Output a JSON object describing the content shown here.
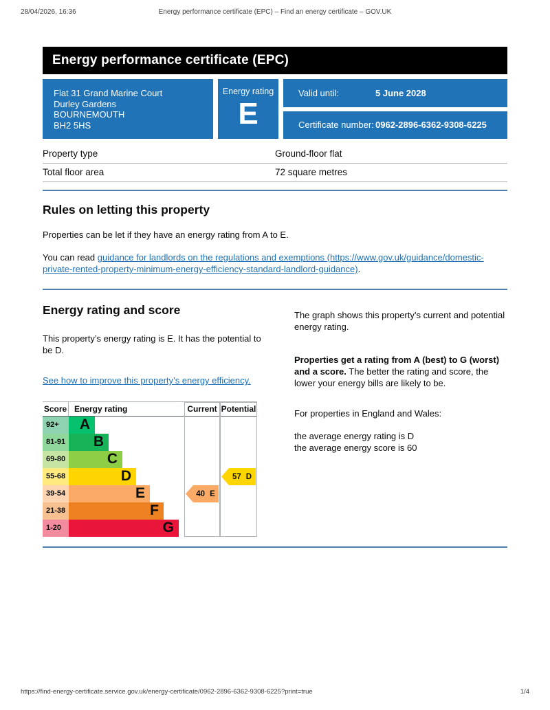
{
  "print_header": {
    "datetime": "28/04/2026, 16:36",
    "title": "Energy performance certificate (EPC) – Find an energy certificate – GOV.UK"
  },
  "banner": {
    "title": "Energy performance certificate (EPC)"
  },
  "summary": {
    "address_lines": [
      "Flat 31 Grand Marine Court",
      "Durley Gardens",
      "BOURNEMOUTH",
      "BH2 5HS"
    ],
    "energy_rating_label": "Energy rating",
    "energy_rating": "E",
    "valid_until_label": "Valid until:",
    "valid_until_value": "5 June 2028",
    "certificate_number_label": "Certificate number:",
    "certificate_number_value": "0962-2896-6362-9308-6225"
  },
  "property_table": {
    "rows": [
      {
        "label": "Property type",
        "value": "Ground-floor flat"
      },
      {
        "label": "Total floor area",
        "value": "72 square metres"
      }
    ]
  },
  "rules_section": {
    "heading": "Rules on letting this property",
    "paragraph1": "Properties can be let if they have an energy rating from A to E.",
    "paragraph2_prefix": "You can read ",
    "link_text": "guidance for landlords on the regulations and exemptions (https://www.gov.uk/guidance/domestic-private-rented-property-minimum-energy-efficiency-standard-landlord-guidance)",
    "paragraph2_suffix": "."
  },
  "rating_section": {
    "heading": "Energy rating and score",
    "paragraph1": "This property’s energy rating is E. It has the potential to be D.",
    "improve_link": "See how to improve this property’s energy efficiency.",
    "right_paragraph1": "The graph shows this property’s current and potential energy rating.",
    "right_paragraph2_bold": "Properties get a rating from A (best) to G (worst) and a score.",
    "right_paragraph2_rest": " The better the rating and score, the lower your energy bills are likely to be.",
    "right_paragraph3": "For properties in England and Wales:",
    "average_rating_line": "the average energy rating is D",
    "average_score_line": "the average energy score is 60"
  },
  "chart_data": {
    "type": "bar",
    "title": "EPC energy rating and score graph",
    "columns": {
      "score": "Score",
      "rating": "Energy rating",
      "current": "Current",
      "potential": "Potential"
    },
    "bands": [
      {
        "score_range": "92+",
        "letter": "A",
        "color": "#06c26f",
        "tint": "#8fd2b1"
      },
      {
        "score_range": "81-91",
        "letter": "B",
        "color": "#18b259",
        "tint": "#90d79c"
      },
      {
        "score_range": "69-80",
        "letter": "C",
        "color": "#8dce46",
        "tint": "#c6e5a3"
      },
      {
        "score_range": "55-68",
        "letter": "D",
        "color": "#ffd500",
        "tint": "#ffea80"
      },
      {
        "score_range": "39-54",
        "letter": "E",
        "color": "#fbaa65",
        "tint": "#fdd5b3"
      },
      {
        "score_range": "21-38",
        "letter": "F",
        "color": "#ee8122",
        "tint": "#f6c091"
      },
      {
        "score_range": "1-20",
        "letter": "G",
        "color": "#e9153b",
        "tint": "#f28b9e"
      }
    ],
    "current": {
      "score": 40,
      "letter": "E",
      "band_color": "#fbaa65"
    },
    "potential": {
      "score": 57,
      "letter": "D",
      "band_color": "#ffd500"
    }
  },
  "print_footer": {
    "url": "https://find-energy-certificate.service.gov.uk/energy-certificate/0962-2896-6362-9308-6225?print=true",
    "page": "1/4"
  }
}
